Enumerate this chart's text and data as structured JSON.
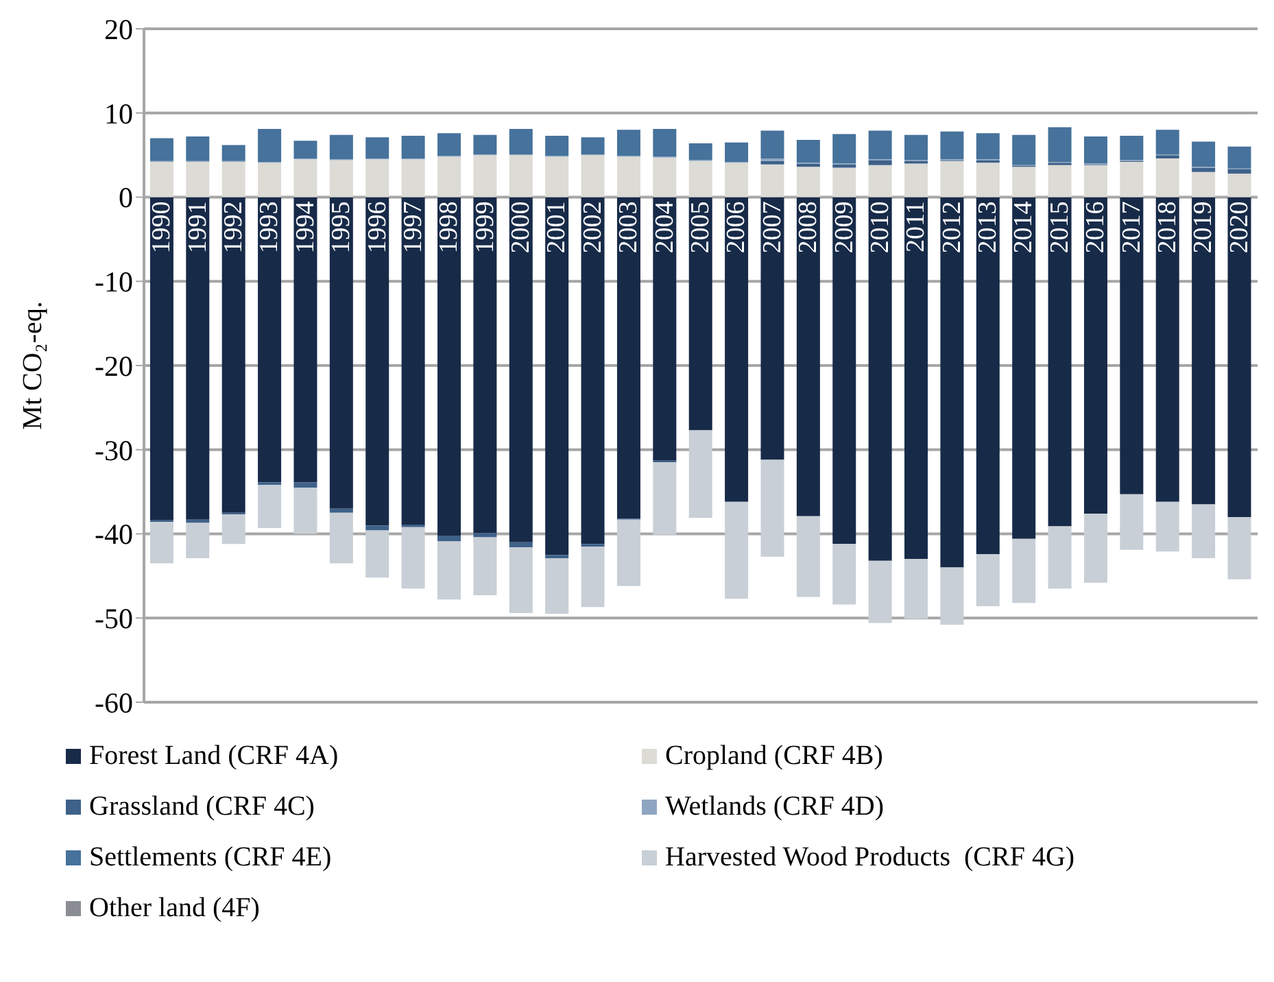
{
  "chart_data": {
    "type": "bar",
    "stacked": true,
    "ylabel": "Mt CO₂-eq.",
    "categories": [
      "1990",
      "1991",
      "1992",
      "1993",
      "1994",
      "1995",
      "1996",
      "1997",
      "1998",
      "1999",
      "2000",
      "2001",
      "2002",
      "2003",
      "2004",
      "2005",
      "2006",
      "2007",
      "2008",
      "2009",
      "2010",
      "2011",
      "2012",
      "2013",
      "2014",
      "2015",
      "2016",
      "2017",
      "2018",
      "2019",
      "2020"
    ],
    "series": [
      {
        "name": "Forest Land (CRF 4A)",
        "color": "#172a48",
        "values": [
          -38.4,
          -38.3,
          -37.5,
          -33.9,
          -33.9,
          -37.0,
          -39.0,
          -38.9,
          -40.2,
          -39.9,
          -41.0,
          -42.5,
          -41.2,
          -38.2,
          -31.3,
          -27.7,
          -36.2,
          -31.2,
          -37.9,
          -41.2,
          -43.2,
          -43.0,
          -44.0,
          -42.4,
          -40.6,
          -39.1,
          -37.6,
          -35.3,
          -36.2,
          -36.5,
          -38.0
        ]
      },
      {
        "name": "Cropland (CRF 4B)",
        "color": "#dddbd6",
        "values": [
          4.2,
          4.2,
          4.2,
          4.1,
          4.5,
          4.4,
          4.5,
          4.5,
          4.8,
          5.0,
          5.0,
          4.8,
          5.0,
          4.8,
          4.7,
          4.3,
          4.1,
          3.9,
          3.6,
          3.5,
          3.8,
          4.0,
          4.3,
          4.1,
          3.6,
          3.8,
          3.8,
          4.2,
          4.6,
          3.0,
          2.8
        ]
      },
      {
        "name": "Grassland (CRF 4C)",
        "color": "#3e6189",
        "values": [
          -0.2,
          -0.4,
          -0.2,
          -0.3,
          -0.6,
          -0.5,
          -0.6,
          -0.3,
          -0.7,
          -0.5,
          -0.6,
          -0.4,
          -0.3,
          -0.1,
          -0.2,
          0,
          0,
          0.4,
          0.4,
          0.4,
          0.6,
          0.3,
          0.1,
          0.3,
          0.1,
          0.3,
          0.1,
          0.1,
          0.4,
          0.5,
          0.5
        ]
      },
      {
        "name": "Wetlands (CRF 4D)",
        "color": "#8ea6c1",
        "values": [
          0.1,
          0.1,
          0.1,
          0.1,
          0.1,
          0.1,
          0.1,
          0.1,
          0.1,
          0.1,
          0.1,
          0.1,
          0.1,
          0.1,
          0.1,
          0.1,
          0.1,
          0.3,
          0.1,
          0.1,
          0.1,
          0.1,
          0.1,
          0.1,
          0.1,
          0.1,
          0.1,
          0.1,
          0.1,
          0.1,
          0.1
        ]
      },
      {
        "name": "Settlements (CRF 4E)",
        "color": "#46729b",
        "values": [
          2.7,
          2.9,
          1.9,
          3.9,
          2.1,
          2.9,
          2.5,
          2.7,
          2.7,
          2.3,
          3.0,
          2.4,
          2.0,
          3.1,
          3.3,
          2.0,
          2.3,
          3.3,
          2.7,
          3.5,
          3.4,
          3.0,
          3.3,
          3.1,
          3.6,
          4.1,
          3.2,
          2.9,
          2.9,
          3.0,
          2.6
        ]
      },
      {
        "name": "Harvested Wood Products  (CRF 4G)",
        "color": "#c8cfd6",
        "values": [
          -4.9,
          -4.2,
          -3.5,
          -5.1,
          -5.5,
          -6.0,
          -5.6,
          -7.3,
          -6.9,
          -6.9,
          -7.8,
          -6.6,
          -7.2,
          -7.9,
          -8.6,
          -10.4,
          -11.5,
          -11.5,
          -9.6,
          -7.2,
          -7.4,
          -7.1,
          -6.8,
          -6.2,
          -7.6,
          -7.4,
          -8.2,
          -6.6,
          -5.9,
          -6.4,
          -7.4
        ]
      },
      {
        "name": "Other land (4F)",
        "color": "#8a8d93",
        "values": [
          0,
          0,
          0,
          0,
          0,
          0,
          0,
          0,
          0,
          0,
          0,
          0,
          0,
          0,
          0,
          0,
          0,
          0,
          0,
          0,
          0,
          0,
          0,
          0,
          0,
          0,
          0,
          0,
          0,
          0,
          0
        ]
      }
    ],
    "ylim": [
      -60,
      20
    ],
    "yticks": [
      -60,
      -50,
      -40,
      -30,
      -20,
      -10,
      0,
      10,
      20
    ],
    "grid": "y",
    "legend": "bottom"
  }
}
